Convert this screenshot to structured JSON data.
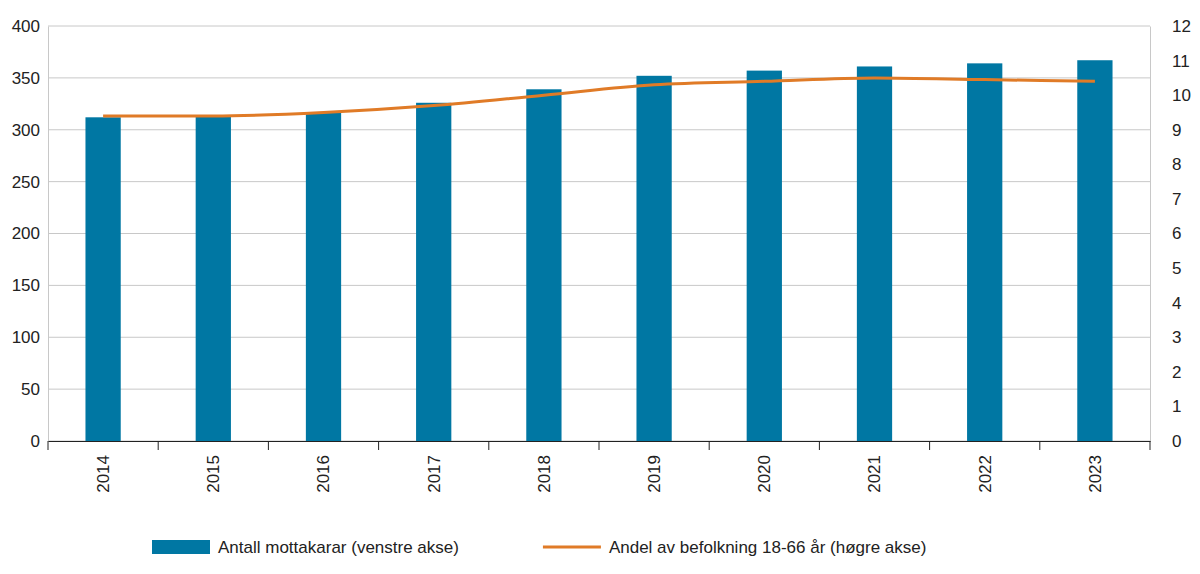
{
  "chart_data": {
    "type": "bar",
    "categories": [
      "2014",
      "2015",
      "2016",
      "2017",
      "2018",
      "2019",
      "2020",
      "2021",
      "2022",
      "2023"
    ],
    "series": [
      {
        "name": "Antall mottakarar (venstre akse)",
        "type": "bar",
        "color": "#0077a3",
        "values": [
          312,
          313,
          317,
          326,
          339,
          352,
          357,
          361,
          364,
          367
        ]
      },
      {
        "name": "Andel av befolkning 18-66 år (høgre akse)",
        "type": "line",
        "axis": "y2",
        "color": "#e07b27",
        "values": [
          9.4,
          9.4,
          9.5,
          9.7,
          10.0,
          10.3,
          10.4,
          10.5,
          10.45,
          10.4
        ]
      }
    ],
    "ylim": [
      0,
      400
    ],
    "yticks": [
      0,
      50,
      100,
      150,
      200,
      250,
      300,
      350,
      400
    ],
    "y2lim": [
      0,
      12
    ],
    "y2ticks": [
      0,
      1,
      2,
      3,
      4,
      5,
      6,
      7,
      8,
      9,
      10,
      11,
      12
    ],
    "grid": true,
    "legend": "bottom"
  }
}
